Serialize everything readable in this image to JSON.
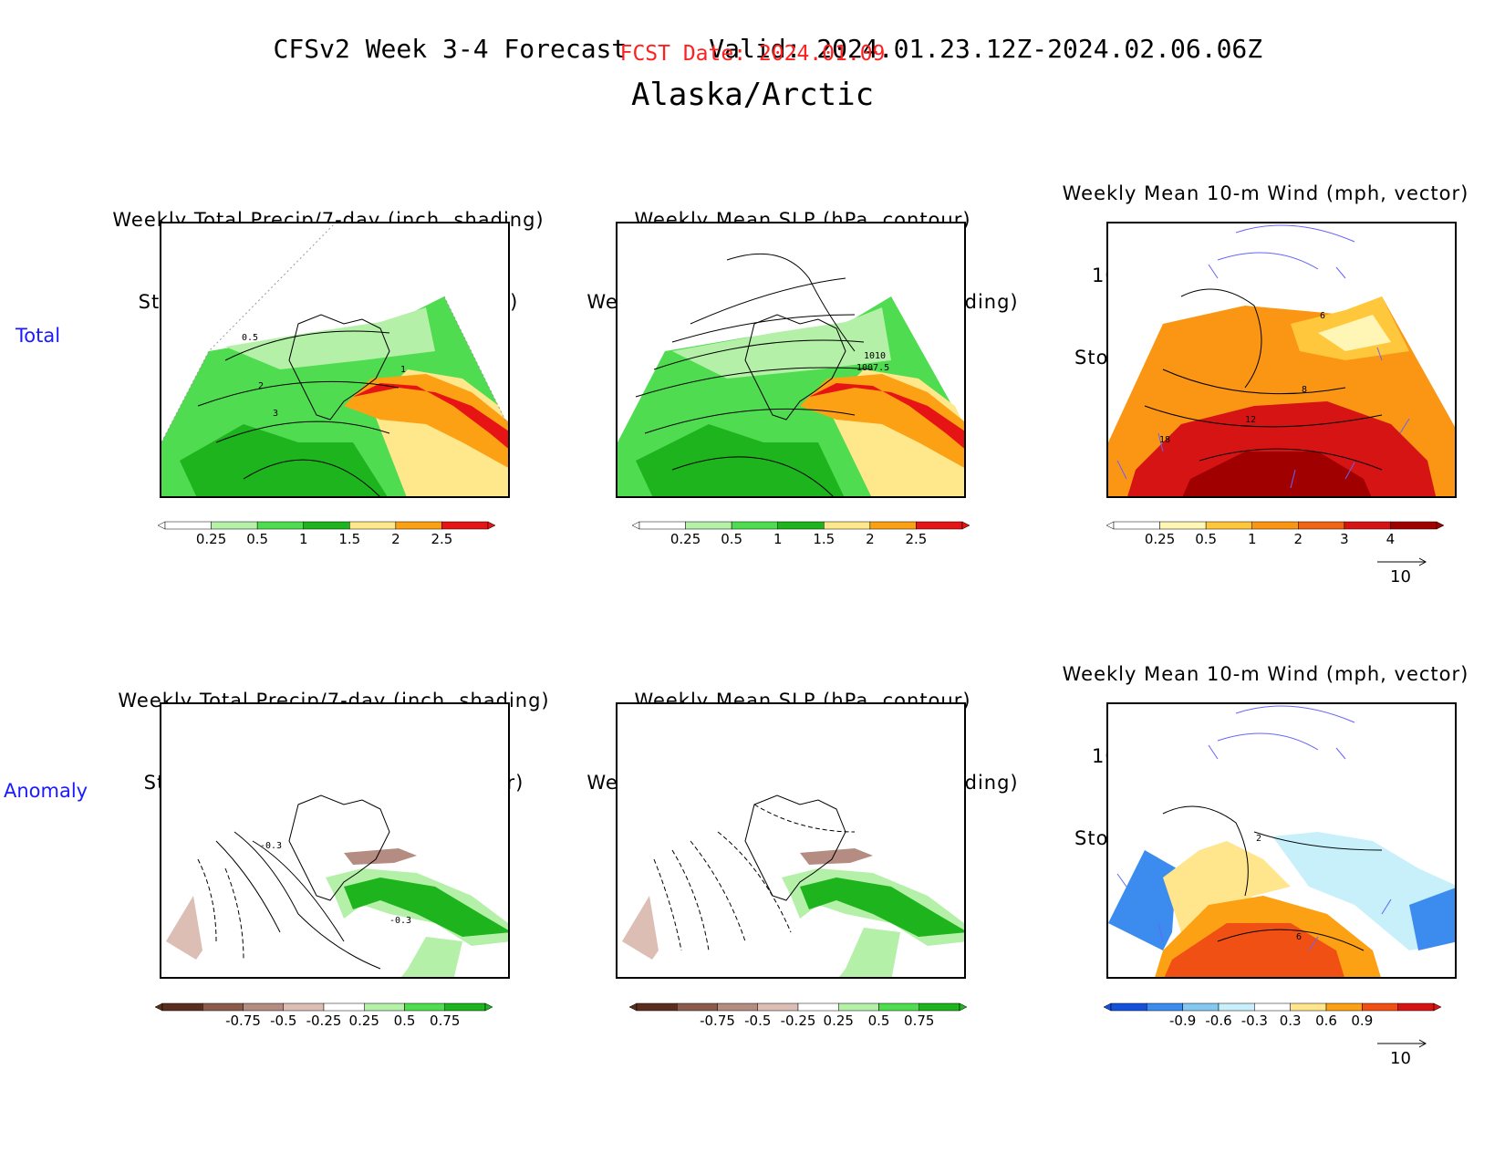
{
  "header": {
    "title_left": "CFSv2 Week 3-4 Forecast",
    "title_right": "Valid: 2024.01.23.12Z-2024.02.06.06Z",
    "fcst_date": "FCST Date: 2024.01.09",
    "region": "Alaska/Arctic"
  },
  "rows": [
    {
      "label": "Total"
    },
    {
      "label": "Anomaly"
    }
  ],
  "panel_titles": {
    "precip_storm": [
      "Weekly Total Precip/7-day (inch, shading)",
      "Storm Track Density/7-day (contour)"
    ],
    "slp_precip": [
      "Weekly Mean SLP (hPa, contour)",
      "Weekly Total Precip/7-day (inch, shading)"
    ],
    "wind_storm": [
      "Weekly Mean 10-m Wind (mph, vector)",
      "10-m Wind Speed (mph, contour)",
      "Storm Track Density/7-day (shading)"
    ]
  },
  "contour_labels": {
    "total_precip": [
      "0.5",
      "1",
      "2",
      "3"
    ],
    "total_slp": [
      "1010",
      "1007.5"
    ],
    "total_wind": [
      "6",
      "8",
      "12",
      "18"
    ],
    "anom_precip": [
      "-0.3",
      "-0.3"
    ],
    "anom_wind": [
      "2",
      "6"
    ]
  },
  "colorbars": {
    "total_precip": {
      "ticks": [
        "0.25",
        "0.5",
        "1",
        "1.5",
        "2",
        "2.5"
      ],
      "colors": [
        "#ffffff",
        "#b4f0a8",
        "#50dc50",
        "#1eb41e",
        "#ffe88c",
        "#fca014",
        "#e61414"
      ]
    },
    "total_storm": {
      "ticks": [
        "0.25",
        "0.5",
        "1",
        "2",
        "3",
        "4"
      ],
      "colors": [
        "#ffffff",
        "#fff5b4",
        "#ffc83c",
        "#fa9614",
        "#f06414",
        "#d71414",
        "#a00000"
      ]
    },
    "anom_precip": {
      "ticks": [
        "-0.75",
        "-0.5",
        "-0.25",
        "0.25",
        "0.5",
        "0.75"
      ],
      "colors": [
        "#5a2d1e",
        "#8c5a4b",
        "#b48c82",
        "#dcbeb4",
        "#ffffff",
        "#b4f0a8",
        "#50dc50",
        "#1eb41e"
      ]
    },
    "anom_storm": {
      "ticks": [
        "-0.9",
        "-0.6",
        "-0.3",
        "0.3",
        "0.6",
        "0.9"
      ],
      "colors": [
        "#1450dc",
        "#3c8cf0",
        "#82c8f0",
        "#c8f0fa",
        "#ffffff",
        "#ffe68c",
        "#fca014",
        "#f05014",
        "#d71414"
      ]
    }
  },
  "vector_ref": "10",
  "colors": {
    "fcst_date": "#ff2020",
    "row_label": "#1a1aff",
    "vector": "#6464ff"
  }
}
